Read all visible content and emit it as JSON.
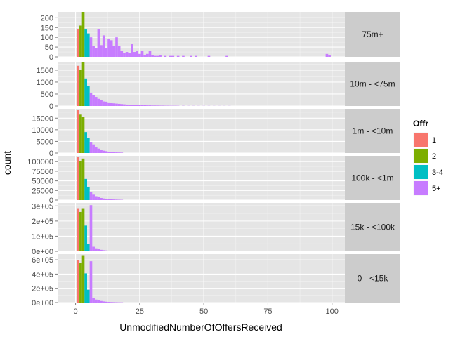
{
  "chart_data": {
    "type": "histogram",
    "xlabel": "UnmodifiedNumberOfOffersReceived",
    "ylabel": "count",
    "xlim": [
      -7,
      105
    ],
    "x_ticks": [
      0,
      25,
      50,
      75,
      100
    ],
    "grid": true,
    "legend_position": "right",
    "legend": {
      "title": "Offr",
      "entries": [
        {
          "label": "1",
          "color": "#F8766D"
        },
        {
          "label": "2",
          "color": "#7CAE00"
        },
        {
          "label": "3-4",
          "color": "#00BFC4"
        },
        {
          "label": "5+",
          "color": "#C77CFF"
        }
      ]
    },
    "panels": [
      {
        "strip": "75m+",
        "ylim": [
          0,
          230
        ],
        "y_ticks": [
          {
            "v": 0,
            "label": "0"
          },
          {
            "v": 50,
            "label": "50"
          },
          {
            "v": 100,
            "label": "100"
          },
          {
            "v": 150,
            "label": "150"
          },
          {
            "v": 200,
            "label": "200"
          }
        ],
        "groups": {
          "1": [
            [
              1,
              140
            ]
          ],
          "2": [
            [
              2,
              160
            ],
            [
              3,
              235
            ]
          ],
          "3-4": [
            [
              4,
              140
            ],
            [
              5,
              120
            ]
          ],
          "5+": [
            [
              6,
              100
            ],
            [
              7,
              55
            ],
            [
              8,
              45
            ],
            [
              9,
              140
            ],
            [
              10,
              60
            ],
            [
              11,
              110
            ],
            [
              12,
              45
            ],
            [
              13,
              90
            ],
            [
              14,
              85
            ],
            [
              15,
              55
            ],
            [
              16,
              100
            ],
            [
              17,
              55
            ],
            [
              18,
              30
            ],
            [
              19,
              20
            ],
            [
              20,
              25
            ],
            [
              21,
              20
            ],
            [
              22,
              65
            ],
            [
              23,
              25
            ],
            [
              24,
              30
            ],
            [
              25,
              15
            ],
            [
              26,
              30
            ],
            [
              27,
              10
            ],
            [
              28,
              15
            ],
            [
              29,
              30
            ],
            [
              30,
              10
            ],
            [
              31,
              5
            ],
            [
              32,
              5
            ],
            [
              33,
              10
            ],
            [
              35,
              5
            ],
            [
              37,
              5
            ],
            [
              38,
              5
            ],
            [
              40,
              5
            ],
            [
              42,
              5
            ],
            [
              45,
              5
            ],
            [
              47,
              5
            ],
            [
              52,
              5
            ],
            [
              59,
              5
            ],
            [
              98,
              15
            ],
            [
              99,
              10
            ]
          ]
        }
      },
      {
        "strip": "10m - <75m",
        "ylim": [
          0,
          1850
        ],
        "y_ticks": [
          {
            "v": 0,
            "label": "0"
          },
          {
            "v": 500,
            "label": "500"
          },
          {
            "v": 1000,
            "label": "1000"
          },
          {
            "v": 1500,
            "label": "1500"
          }
        ],
        "groups": {
          "1": [
            [
              1,
              1680
            ]
          ],
          "2": [
            [
              2,
              1500
            ],
            [
              3,
              1850
            ]
          ],
          "3-4": [
            [
              4,
              1150
            ],
            [
              5,
              850
            ]
          ],
          "5+": [
            [
              6,
              560
            ],
            [
              7,
              450
            ],
            [
              8,
              380
            ],
            [
              9,
              300
            ],
            [
              10,
              240
            ],
            [
              11,
              190
            ],
            [
              12,
              180
            ],
            [
              13,
              150
            ],
            [
              14,
              130
            ],
            [
              15,
              110
            ],
            [
              16,
              100
            ],
            [
              17,
              90
            ],
            [
              18,
              80
            ],
            [
              19,
              70
            ],
            [
              20,
              60
            ],
            [
              21,
              55
            ],
            [
              22,
              50
            ],
            [
              23,
              45
            ],
            [
              24,
              40
            ],
            [
              25,
              40
            ],
            [
              26,
              30
            ],
            [
              27,
              30
            ],
            [
              28,
              25
            ],
            [
              29,
              25
            ],
            [
              30,
              20
            ],
            [
              31,
              20
            ],
            [
              32,
              18
            ],
            [
              33,
              15
            ],
            [
              34,
              15
            ],
            [
              35,
              12
            ],
            [
              36,
              12
            ],
            [
              37,
              10
            ],
            [
              38,
              10
            ],
            [
              39,
              10
            ],
            [
              40,
              8
            ],
            [
              42,
              8
            ],
            [
              44,
              6
            ],
            [
              46,
              6
            ],
            [
              48,
              5
            ],
            [
              50,
              5
            ],
            [
              52,
              5
            ],
            [
              54,
              4
            ],
            [
              56,
              4
            ],
            [
              58,
              4
            ],
            [
              60,
              4
            ]
          ]
        }
      },
      {
        "strip": "1m - <10m",
        "ylim": [
          0,
          19000
        ],
        "y_ticks": [
          {
            "v": 0,
            "label": "0"
          },
          {
            "v": 5000,
            "label": "5000"
          },
          {
            "v": 10000,
            "label": "10000"
          },
          {
            "v": 15000,
            "label": "15000"
          }
        ],
        "groups": {
          "1": [
            [
              1,
              18500
            ]
          ],
          "2": [
            [
              2,
              16500
            ],
            [
              3,
              15500
            ]
          ],
          "3-4": [
            [
              4,
              9000
            ],
            [
              5,
              6500
            ]
          ],
          "5+": [
            [
              6,
              4800
            ],
            [
              7,
              3700
            ],
            [
              8,
              2400
            ],
            [
              9,
              1900
            ],
            [
              10,
              1400
            ],
            [
              11,
              1000
            ],
            [
              12,
              800
            ],
            [
              13,
              600
            ],
            [
              14,
              450
            ],
            [
              15,
              350
            ],
            [
              16,
              280
            ],
            [
              17,
              230
            ],
            [
              18,
              180
            ]
          ]
        }
      },
      {
        "strip": "100k - <1m",
        "ylim": [
          0,
          115000
        ],
        "y_ticks": [
          {
            "v": 0,
            "label": "0"
          },
          {
            "v": 25000,
            "label": "25000"
          },
          {
            "v": 50000,
            "label": "50000"
          },
          {
            "v": 75000,
            "label": "75000"
          },
          {
            "v": 100000,
            "label": "100000"
          }
        ],
        "groups": {
          "1": [
            [
              1,
              112000
            ]
          ],
          "2": [
            [
              2,
              102000
            ],
            [
              3,
              108000
            ]
          ],
          "3-4": [
            [
              4,
              55000
            ],
            [
              5,
              34000
            ]
          ],
          "5+": [
            [
              6,
              21000
            ],
            [
              7,
              14000
            ],
            [
              8,
              10000
            ],
            [
              9,
              7500
            ],
            [
              10,
              5500
            ],
            [
              11,
              4200
            ],
            [
              12,
              3200
            ],
            [
              13,
              2500
            ],
            [
              14,
              2000
            ],
            [
              15,
              1500
            ],
            [
              16,
              1200
            ],
            [
              17,
              900
            ],
            [
              18,
              700
            ]
          ]
        }
      },
      {
        "strip": "15k - <100k",
        "ylim": [
          0,
          320000
        ],
        "y_ticks": [
          {
            "v": 0,
            "label": "0e+00"
          },
          {
            "v": 100000,
            "label": "1e+05"
          },
          {
            "v": 200000,
            "label": "2e+05"
          },
          {
            "v": 300000,
            "label": "3e+05"
          }
        ],
        "groups": {
          "1": [
            [
              1,
              285000
            ]
          ],
          "2": [
            [
              2,
              260000
            ],
            [
              3,
              285000
            ]
          ],
          "3-4": [
            [
              4,
              170000
            ],
            [
              5,
              50000
            ]
          ],
          "5+": [
            [
              6,
              305000
            ],
            [
              7,
              30000
            ],
            [
              8,
              20000
            ],
            [
              9,
              14000
            ],
            [
              10,
              10000
            ],
            [
              11,
              7500
            ],
            [
              12,
              6000
            ],
            [
              13,
              4500
            ],
            [
              14,
              3500
            ],
            [
              15,
              2800
            ],
            [
              16,
              2200
            ],
            [
              17,
              1800
            ],
            [
              18,
              1500
            ]
          ]
        }
      },
      {
        "strip": "0 - <15k",
        "ylim": [
          0,
          680000
        ],
        "y_ticks": [
          {
            "v": 0,
            "label": "0e+00"
          },
          {
            "v": 200000,
            "label": "2e+05"
          },
          {
            "v": 400000,
            "label": "4e+05"
          },
          {
            "v": 600000,
            "label": "6e+05"
          }
        ],
        "groups": {
          "1": [
            [
              1,
              600000
            ]
          ],
          "2": [
            [
              2,
              560000
            ],
            [
              3,
              665000
            ]
          ],
          "3-4": [
            [
              4,
              410000
            ],
            [
              5,
              180000
            ]
          ],
          "5+": [
            [
              6,
              580000
            ],
            [
              7,
              60000
            ],
            [
              8,
              42000
            ],
            [
              9,
              30000
            ],
            [
              10,
              22000
            ],
            [
              11,
              16000
            ],
            [
              12,
              12000
            ],
            [
              13,
              9000
            ],
            [
              14,
              7000
            ],
            [
              15,
              5500
            ],
            [
              16,
              4500
            ],
            [
              17,
              3500
            ],
            [
              18,
              3000
            ]
          ]
        }
      }
    ]
  }
}
